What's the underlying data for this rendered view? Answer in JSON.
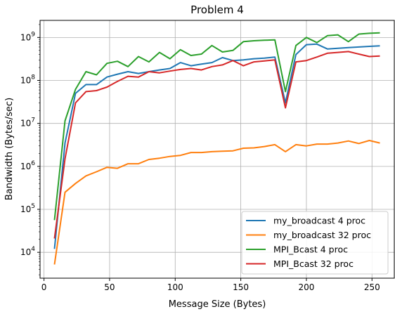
{
  "chart_data": {
    "type": "line",
    "title": "Problem 4",
    "xlabel": "Message Size (Bytes)",
    "ylabel": "Bandwidth (Bytes/sec)",
    "yscale": "log",
    "xlim": [
      -3,
      267
    ],
    "ylim": [
      2500,
      2500000000
    ],
    "grid": true,
    "legend_position": "lower-right",
    "x_ticks": [
      {
        "value": 0,
        "label": "0"
      },
      {
        "value": 50,
        "label": "50"
      },
      {
        "value": 100,
        "label": "100"
      },
      {
        "value": 150,
        "label": "150"
      },
      {
        "value": 200,
        "label": "200"
      },
      {
        "value": 250,
        "label": "250"
      }
    ],
    "y_ticks": [
      {
        "value": 10000,
        "mantissa": "10",
        "exponent": "4"
      },
      {
        "value": 100000,
        "mantissa": "10",
        "exponent": "5"
      },
      {
        "value": 1000000,
        "mantissa": "10",
        "exponent": "6"
      },
      {
        "value": 10000000,
        "mantissa": "10",
        "exponent": "7"
      },
      {
        "value": 100000000,
        "mantissa": "10",
        "exponent": "8"
      },
      {
        "value": 1000000000,
        "mantissa": "10",
        "exponent": "9"
      }
    ],
    "x": [
      8,
      16,
      24,
      32,
      40,
      48,
      56,
      64,
      72,
      80,
      88,
      96,
      104,
      112,
      120,
      128,
      136,
      144,
      152,
      160,
      168,
      176,
      184,
      192,
      200,
      208,
      216,
      224,
      232,
      240,
      248,
      256
    ],
    "series": [
      {
        "name": "my_broadcast 4 proc",
        "color": "#1f77b4",
        "values": [
          12000,
          3500000,
          50000000,
          80000000,
          80000000,
          120000000,
          140000000,
          160000000,
          145000000,
          160000000,
          175000000,
          190000000,
          260000000,
          220000000,
          240000000,
          260000000,
          340000000,
          290000000,
          300000000,
          320000000,
          330000000,
          350000000,
          30000000,
          400000000,
          680000000,
          700000000,
          540000000,
          560000000,
          580000000,
          600000000,
          620000000,
          640000000
        ]
      },
      {
        "name": "my_broadcast 32 proc",
        "color": "#ff7f0e",
        "values": [
          5200,
          250000,
          400000,
          600000,
          750000,
          950000,
          900000,
          1150000,
          1150000,
          1450000,
          1550000,
          1700000,
          1800000,
          2100000,
          2100000,
          2200000,
          2250000,
          2300000,
          2650000,
          2700000,
          2900000,
          3200000,
          2200000,
          3200000,
          3000000,
          3300000,
          3300000,
          3500000,
          3900000,
          3400000,
          4000000,
          3500000
        ]
      },
      {
        "name": "MPI_Bcast 4 proc",
        "color": "#2ca02c",
        "values": [
          56000,
          11500000,
          62000000,
          160000000,
          135000000,
          250000000,
          280000000,
          210000000,
          360000000,
          270000000,
          450000000,
          320000000,
          520000000,
          380000000,
          410000000,
          650000000,
          460000000,
          500000000,
          800000000,
          840000000,
          860000000,
          880000000,
          55000000,
          650000000,
          1000000000,
          760000000,
          1100000000,
          1150000000,
          800000000,
          1200000000,
          1250000000,
          1280000000
        ]
      },
      {
        "name": "MPI_Bcast 32 proc",
        "color": "#d62728",
        "values": [
          21000,
          1500000,
          30000000,
          55000000,
          58000000,
          70000000,
          95000000,
          125000000,
          120000000,
          160000000,
          150000000,
          165000000,
          180000000,
          190000000,
          175000000,
          210000000,
          230000000,
          290000000,
          220000000,
          270000000,
          285000000,
          300000000,
          23000000,
          270000000,
          290000000,
          350000000,
          430000000,
          450000000,
          470000000,
          410000000,
          360000000,
          370000000
        ]
      }
    ]
  }
}
